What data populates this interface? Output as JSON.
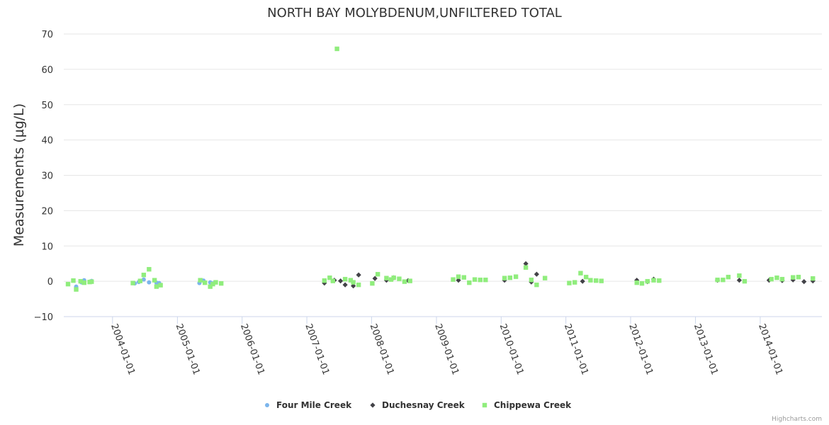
{
  "chart_data": {
    "type": "scatter",
    "title": "NORTH BAY MOLYBDENUM,UNFILTERED TOTAL",
    "ylabel": "Measurements (µg/L)",
    "xlabel": "",
    "ylim": [
      -10,
      70
    ],
    "yticks": [
      -10,
      0,
      10,
      20,
      30,
      40,
      50,
      60,
      70
    ],
    "xlim": [
      "2003-04-01",
      "2014-12-15"
    ],
    "xticks": [
      "2004-01-01",
      "2005-01-01",
      "2006-01-01",
      "2007-01-01",
      "2008-01-01",
      "2009-01-01",
      "2010-01-01",
      "2011-01-01",
      "2012-01-01",
      "2013-01-01",
      "2014-01-01"
    ],
    "grid": true,
    "legend_position": "bottom-center",
    "series": [
      {
        "name": "Four Mile Creek",
        "marker": "circle",
        "color": "#7cb5ec",
        "points": [
          {
            "x": "2003-06-10",
            "y": -1.5
          },
          {
            "x": "2003-07-10",
            "y": -0.3
          },
          {
            "x": "2003-07-25",
            "y": 0.3
          },
          {
            "x": "2003-08-25",
            "y": -0.2
          },
          {
            "x": "2003-09-05",
            "y": 0.1
          },
          {
            "x": "2004-05-05",
            "y": -0.6
          },
          {
            "x": "2004-05-28",
            "y": -0.2
          },
          {
            "x": "2004-06-25",
            "y": 0.5
          },
          {
            "x": "2004-07-25",
            "y": -0.3
          },
          {
            "x": "2004-09-05",
            "y": -0.4
          },
          {
            "x": "2004-09-20",
            "y": -0.5
          },
          {
            "x": "2005-05-05",
            "y": -0.5
          },
          {
            "x": "2005-05-28",
            "y": 0.2
          },
          {
            "x": "2005-07-05",
            "y": -0.3
          },
          {
            "x": "2005-07-20",
            "y": -0.6
          }
        ]
      },
      {
        "name": "Duchesnay Creek",
        "marker": "diamond",
        "color": "#434348",
        "points": [
          {
            "x": "2007-04-10",
            "y": -0.5
          },
          {
            "x": "2007-06-05",
            "y": 0.3
          },
          {
            "x": "2007-07-10",
            "y": 0.1
          },
          {
            "x": "2007-08-05",
            "y": -1.0
          },
          {
            "x": "2007-09-20",
            "y": -1.3
          },
          {
            "x": "2007-10-20",
            "y": 1.8
          },
          {
            "x": "2008-01-20",
            "y": 0.8
          },
          {
            "x": "2008-03-25",
            "y": 0.3
          },
          {
            "x": "2008-05-05",
            "y": 1.0
          },
          {
            "x": "2008-07-25",
            "y": 0.2
          },
          {
            "x": "2009-05-05",
            "y": 0.3
          },
          {
            "x": "2010-01-20",
            "y": 0.3
          },
          {
            "x": "2010-05-20",
            "y": 5.0
          },
          {
            "x": "2010-06-20",
            "y": -0.2
          },
          {
            "x": "2010-07-20",
            "y": 2.0
          },
          {
            "x": "2011-04-05",
            "y": 0.0
          },
          {
            "x": "2012-02-05",
            "y": 0.3
          },
          {
            "x": "2012-04-05",
            "y": -0.1
          },
          {
            "x": "2012-05-10",
            "y": 0.6
          },
          {
            "x": "2013-05-05",
            "y": 0.3
          },
          {
            "x": "2013-09-05",
            "y": 0.3
          },
          {
            "x": "2014-02-20",
            "y": 0.3
          },
          {
            "x": "2014-05-05",
            "y": 0.2
          },
          {
            "x": "2014-07-05",
            "y": 0.4
          },
          {
            "x": "2014-09-05",
            "y": -0.1
          },
          {
            "x": "2014-10-25",
            "y": 0.1
          }
        ]
      },
      {
        "name": "Chippewa Creek",
        "marker": "square",
        "color": "#90ed7d",
        "points": [
          {
            "x": "2003-04-25",
            "y": -0.8
          },
          {
            "x": "2003-05-25",
            "y": 0.2
          },
          {
            "x": "2003-06-10",
            "y": -2.3
          },
          {
            "x": "2003-07-05",
            "y": 0.0
          },
          {
            "x": "2003-07-25",
            "y": -0.4
          },
          {
            "x": "2003-08-25",
            "y": -0.2
          },
          {
            "x": "2003-09-05",
            "y": -0.1
          },
          {
            "x": "2004-04-25",
            "y": -0.5
          },
          {
            "x": "2004-06-05",
            "y": 0.1
          },
          {
            "x": "2004-06-25",
            "y": 1.8
          },
          {
            "x": "2004-07-25",
            "y": 3.4
          },
          {
            "x": "2004-08-25",
            "y": 0.3
          },
          {
            "x": "2004-09-05",
            "y": -1.5
          },
          {
            "x": "2004-09-28",
            "y": -1.1
          },
          {
            "x": "2005-05-10",
            "y": 0.3
          },
          {
            "x": "2005-06-05",
            "y": -0.4
          },
          {
            "x": "2005-07-05",
            "y": -1.5
          },
          {
            "x": "2005-07-20",
            "y": -0.8
          },
          {
            "x": "2005-08-05",
            "y": -0.3
          },
          {
            "x": "2005-09-05",
            "y": -0.6
          },
          {
            "x": "2007-04-10",
            "y": 0.2
          },
          {
            "x": "2007-05-10",
            "y": 1.0
          },
          {
            "x": "2007-05-28",
            "y": 0.1
          },
          {
            "x": "2007-06-20",
            "y": 65.8
          },
          {
            "x": "2007-08-05",
            "y": 0.6
          },
          {
            "x": "2007-09-05",
            "y": 0.3
          },
          {
            "x": "2007-09-20",
            "y": -0.3
          },
          {
            "x": "2007-10-20",
            "y": -1.0
          },
          {
            "x": "2008-01-05",
            "y": -0.6
          },
          {
            "x": "2008-02-05",
            "y": 2.0
          },
          {
            "x": "2008-03-25",
            "y": 0.9
          },
          {
            "x": "2008-04-20",
            "y": 0.5
          },
          {
            "x": "2008-05-05",
            "y": 1.0
          },
          {
            "x": "2008-06-05",
            "y": 0.7
          },
          {
            "x": "2008-07-05",
            "y": -0.1
          },
          {
            "x": "2008-08-05",
            "y": 0.1
          },
          {
            "x": "2009-04-05",
            "y": 0.5
          },
          {
            "x": "2009-05-05",
            "y": 1.3
          },
          {
            "x": "2009-06-05",
            "y": 1.1
          },
          {
            "x": "2009-07-05",
            "y": -0.4
          },
          {
            "x": "2009-08-05",
            "y": 0.5
          },
          {
            "x": "2009-09-05",
            "y": 0.4
          },
          {
            "x": "2009-10-05",
            "y": 0.4
          },
          {
            "x": "2010-01-20",
            "y": 0.9
          },
          {
            "x": "2010-02-20",
            "y": 1.0
          },
          {
            "x": "2010-03-25",
            "y": 1.3
          },
          {
            "x": "2010-05-20",
            "y": 3.9
          },
          {
            "x": "2010-06-20",
            "y": 0.4
          },
          {
            "x": "2010-07-20",
            "y": -1.0
          },
          {
            "x": "2010-09-05",
            "y": 0.9
          },
          {
            "x": "2011-01-20",
            "y": -0.5
          },
          {
            "x": "2011-02-20",
            "y": -0.3
          },
          {
            "x": "2011-03-25",
            "y": 2.3
          },
          {
            "x": "2011-04-25",
            "y": 1.2
          },
          {
            "x": "2011-05-20",
            "y": 0.3
          },
          {
            "x": "2011-06-20",
            "y": 0.2
          },
          {
            "x": "2011-07-20",
            "y": 0.1
          },
          {
            "x": "2012-02-05",
            "y": -0.4
          },
          {
            "x": "2012-03-05",
            "y": -0.6
          },
          {
            "x": "2012-04-05",
            "y": 0.0
          },
          {
            "x": "2012-05-10",
            "y": 0.3
          },
          {
            "x": "2012-06-10",
            "y": 0.2
          },
          {
            "x": "2013-05-05",
            "y": 0.4
          },
          {
            "x": "2013-06-05",
            "y": 0.4
          },
          {
            "x": "2013-07-05",
            "y": 1.2
          },
          {
            "x": "2013-09-05",
            "y": 1.6
          },
          {
            "x": "2013-10-05",
            "y": 0.0
          },
          {
            "x": "2014-03-05",
            "y": 0.6
          },
          {
            "x": "2014-04-05",
            "y": 1.0
          },
          {
            "x": "2014-05-05",
            "y": 0.6
          },
          {
            "x": "2014-07-05",
            "y": 1.1
          },
          {
            "x": "2014-08-05",
            "y": 1.2
          },
          {
            "x": "2014-10-25",
            "y": 0.8
          }
        ]
      }
    ]
  },
  "credits": "Highcharts.com"
}
